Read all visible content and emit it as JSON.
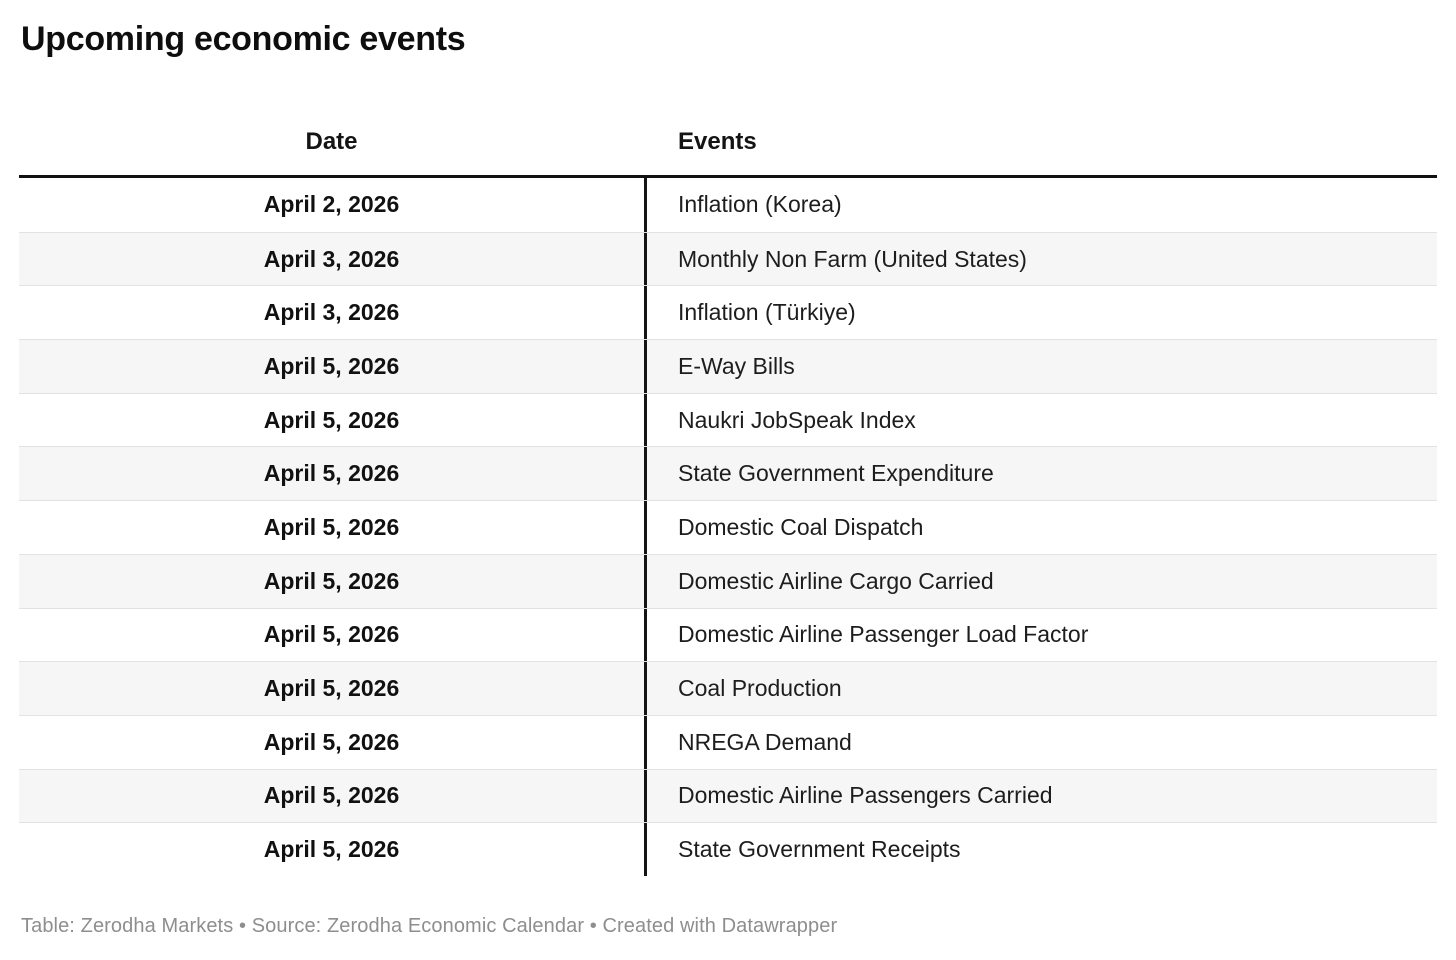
{
  "title": "Upcoming economic events",
  "chart_data": {
    "type": "table",
    "title": "Upcoming economic events",
    "columns": [
      "Date",
      "Events"
    ],
    "rows": [
      [
        "April 2, 2026",
        "Inflation (Korea)"
      ],
      [
        "April 3, 2026",
        "Monthly Non Farm (United States)"
      ],
      [
        "April 3, 2026",
        "Inflation (Türkiye)"
      ],
      [
        "April 5, 2026",
        "E-Way Bills"
      ],
      [
        "April 5, 2026",
        "Naukri JobSpeak Index"
      ],
      [
        "April 5, 2026",
        "State Government Expenditure"
      ],
      [
        "April 5, 2026",
        "Domestic Coal Dispatch"
      ],
      [
        "April 5, 2026",
        "Domestic Airline Cargo Carried"
      ],
      [
        "April 5, 2026",
        "Domestic Airline Passenger Load Factor"
      ],
      [
        "April 5, 2026",
        "Coal Production"
      ],
      [
        "April 5, 2026",
        "NREGA Demand"
      ],
      [
        "April 5, 2026",
        "Domestic Airline Passengers Carried"
      ],
      [
        "April 5, 2026",
        "State Government Receipts"
      ]
    ],
    "layout_hints": {
      "date_column_align": "center",
      "events_column_align": "left",
      "striped_rows": true
    }
  },
  "footer": "Table: Zerodha Markets • Source: Zerodha Economic Calendar • Created with Datawrapper",
  "colors": {
    "header_rule": "#111111",
    "column_divider": "#141414",
    "row_stripe": "#f6f6f6",
    "row_separator": "#e2e2e2",
    "footer_text": "#8e8e8e",
    "text": "#141414"
  }
}
